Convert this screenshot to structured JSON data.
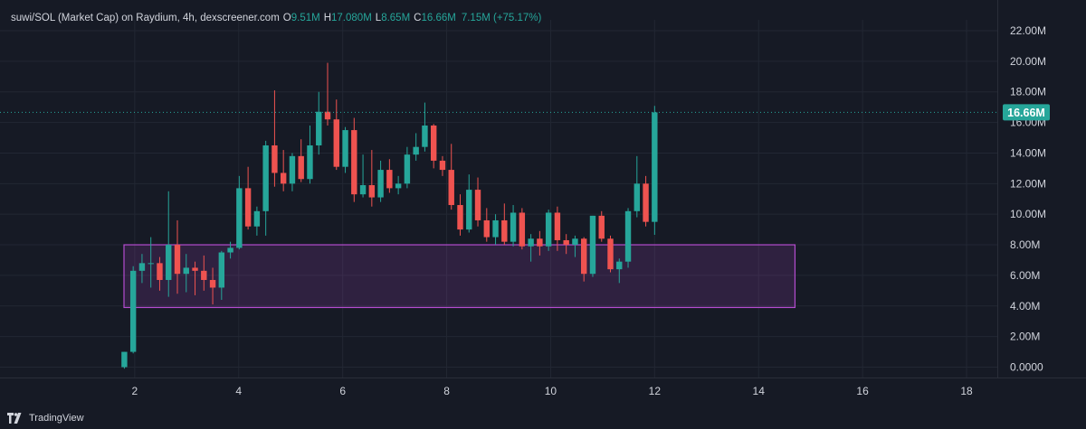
{
  "legend": {
    "symbol": "suwi/SOL (Market Cap) on Raydium, 4h, dexscreener.com",
    "open_label": "O",
    "open": "9.51M",
    "high_label": "H",
    "high": "17.080M",
    "low_label": "L",
    "low": "8.65M",
    "close_label": "C",
    "close": "16.66M",
    "change": "7.15M (+75.17%)"
  },
  "footer": {
    "brand": "TradingView",
    "logo_icon": "tradingview-logo-icon"
  },
  "colors": {
    "up": "#26a69a",
    "down": "#ef5350",
    "zone": "#b44ccf",
    "background": "#161a25"
  },
  "chart_data": {
    "type": "candlestick",
    "x_ticks": [
      "2",
      "4",
      "6",
      "8",
      "10",
      "12",
      "14",
      "16",
      "18"
    ],
    "y_ticks": [
      "0.0000",
      "2.00M",
      "4.00M",
      "6.00M",
      "8.00M",
      "10.00M",
      "12.00M",
      "14.00M",
      "16.00M",
      "18.00M",
      "20.00M",
      "22.00M"
    ],
    "y_unit": "M",
    "x_range": [
      0,
      19.3
    ],
    "y_range": [
      -0.8,
      23.4
    ],
    "last_price": 16.66,
    "last_price_label": "16.66M",
    "zone": {
      "x_start": 0,
      "x_end": 14.7,
      "y_low": 3.9,
      "y_high": 8.0
    },
    "candles": [
      {
        "x": 1.8,
        "o": 0.0,
        "h": 1.0,
        "l": -0.1,
        "c": 1.0
      },
      {
        "x": 1.97,
        "o": 1.0,
        "h": 6.6,
        "l": 0.9,
        "c": 6.3
      },
      {
        "x": 2.14,
        "o": 6.3,
        "h": 7.4,
        "l": 5.5,
        "c": 6.8
      },
      {
        "x": 2.31,
        "o": 6.8,
        "h": 8.5,
        "l": 5.2,
        "c": 6.8
      },
      {
        "x": 2.48,
        "o": 6.8,
        "h": 7.2,
        "l": 5.0,
        "c": 5.7
      },
      {
        "x": 2.65,
        "o": 5.7,
        "h": 11.5,
        "l": 4.6,
        "c": 8.0
      },
      {
        "x": 2.82,
        "o": 8.0,
        "h": 9.6,
        "l": 4.8,
        "c": 6.1
      },
      {
        "x": 2.99,
        "o": 6.1,
        "h": 7.4,
        "l": 4.9,
        "c": 6.5
      },
      {
        "x": 3.16,
        "o": 6.5,
        "h": 6.9,
        "l": 4.7,
        "c": 6.3
      },
      {
        "x": 3.33,
        "o": 6.3,
        "h": 7.3,
        "l": 5.0,
        "c": 5.7
      },
      {
        "x": 3.5,
        "o": 5.7,
        "h": 6.5,
        "l": 4.1,
        "c": 5.2
      },
      {
        "x": 3.67,
        "o": 5.2,
        "h": 7.6,
        "l": 4.4,
        "c": 7.5
      },
      {
        "x": 3.84,
        "o": 7.5,
        "h": 8.2,
        "l": 7.1,
        "c": 7.8
      },
      {
        "x": 4.01,
        "o": 7.8,
        "h": 12.5,
        "l": 7.7,
        "c": 11.7
      },
      {
        "x": 4.18,
        "o": 11.7,
        "h": 13.1,
        "l": 9.0,
        "c": 9.2
      },
      {
        "x": 4.35,
        "o": 9.2,
        "h": 10.5,
        "l": 8.6,
        "c": 10.2
      },
      {
        "x": 4.52,
        "o": 10.2,
        "h": 14.8,
        "l": 8.6,
        "c": 14.5
      },
      {
        "x": 4.69,
        "o": 14.5,
        "h": 18.1,
        "l": 11.8,
        "c": 12.7
      },
      {
        "x": 4.86,
        "o": 12.7,
        "h": 14.2,
        "l": 11.5,
        "c": 12.0
      },
      {
        "x": 5.03,
        "o": 12.0,
        "h": 14.0,
        "l": 11.5,
        "c": 13.8
      },
      {
        "x": 5.2,
        "o": 13.8,
        "h": 14.9,
        "l": 12.1,
        "c": 12.3
      },
      {
        "x": 5.37,
        "o": 12.3,
        "h": 15.8,
        "l": 12.0,
        "c": 14.5
      },
      {
        "x": 5.54,
        "o": 14.5,
        "h": 18.0,
        "l": 13.9,
        "c": 16.7
      },
      {
        "x": 5.71,
        "o": 16.7,
        "h": 19.9,
        "l": 15.8,
        "c": 16.2
      },
      {
        "x": 5.88,
        "o": 16.2,
        "h": 17.5,
        "l": 12.9,
        "c": 13.1
      },
      {
        "x": 6.05,
        "o": 13.1,
        "h": 15.7,
        "l": 12.7,
        "c": 15.5
      },
      {
        "x": 6.22,
        "o": 15.5,
        "h": 16.3,
        "l": 10.8,
        "c": 11.3
      },
      {
        "x": 6.39,
        "o": 11.3,
        "h": 13.9,
        "l": 11.1,
        "c": 11.9
      },
      {
        "x": 6.56,
        "o": 11.9,
        "h": 14.2,
        "l": 10.5,
        "c": 11.1
      },
      {
        "x": 6.73,
        "o": 11.1,
        "h": 13.5,
        "l": 10.8,
        "c": 12.9
      },
      {
        "x": 6.9,
        "o": 12.9,
        "h": 13.6,
        "l": 11.4,
        "c": 11.7
      },
      {
        "x": 7.07,
        "o": 11.7,
        "h": 12.5,
        "l": 11.3,
        "c": 12.0
      },
      {
        "x": 7.24,
        "o": 12.0,
        "h": 14.4,
        "l": 11.7,
        "c": 13.9
      },
      {
        "x": 7.41,
        "o": 13.9,
        "h": 15.3,
        "l": 13.5,
        "c": 14.4
      },
      {
        "x": 7.58,
        "o": 14.4,
        "h": 17.3,
        "l": 14.1,
        "c": 15.8
      },
      {
        "x": 7.75,
        "o": 15.8,
        "h": 15.9,
        "l": 13.0,
        "c": 13.5
      },
      {
        "x": 7.92,
        "o": 13.5,
        "h": 13.8,
        "l": 12.5,
        "c": 12.9
      },
      {
        "x": 8.09,
        "o": 12.9,
        "h": 14.6,
        "l": 10.3,
        "c": 10.6
      },
      {
        "x": 8.26,
        "o": 10.6,
        "h": 11.3,
        "l": 8.6,
        "c": 9.0
      },
      {
        "x": 8.43,
        "o": 9.0,
        "h": 12.6,
        "l": 8.8,
        "c": 11.6
      },
      {
        "x": 8.6,
        "o": 11.6,
        "h": 12.4,
        "l": 9.2,
        "c": 9.6
      },
      {
        "x": 8.77,
        "o": 9.6,
        "h": 10.4,
        "l": 8.2,
        "c": 8.5
      },
      {
        "x": 8.94,
        "o": 8.5,
        "h": 10.0,
        "l": 8.0,
        "c": 9.6
      },
      {
        "x": 9.11,
        "o": 9.6,
        "h": 10.7,
        "l": 8.0,
        "c": 8.2
      },
      {
        "x": 9.28,
        "o": 8.2,
        "h": 10.6,
        "l": 7.9,
        "c": 10.1
      },
      {
        "x": 9.45,
        "o": 10.1,
        "h": 10.4,
        "l": 7.7,
        "c": 7.9
      },
      {
        "x": 9.62,
        "o": 7.9,
        "h": 8.7,
        "l": 6.9,
        "c": 8.4
      },
      {
        "x": 9.79,
        "o": 8.4,
        "h": 8.9,
        "l": 7.3,
        "c": 7.9
      },
      {
        "x": 9.96,
        "o": 7.9,
        "h": 10.3,
        "l": 7.6,
        "c": 10.1
      },
      {
        "x": 10.13,
        "o": 10.1,
        "h": 10.5,
        "l": 7.6,
        "c": 8.3
      },
      {
        "x": 10.3,
        "o": 8.3,
        "h": 8.7,
        "l": 7.4,
        "c": 8.0
      },
      {
        "x": 10.47,
        "o": 8.0,
        "h": 8.6,
        "l": 7.2,
        "c": 8.4
      },
      {
        "x": 10.64,
        "o": 8.4,
        "h": 8.5,
        "l": 5.6,
        "c": 6.1
      },
      {
        "x": 10.81,
        "o": 6.1,
        "h": 9.9,
        "l": 5.9,
        "c": 9.9
      },
      {
        "x": 10.98,
        "o": 9.9,
        "h": 10.2,
        "l": 8.2,
        "c": 8.4
      },
      {
        "x": 11.15,
        "o": 8.4,
        "h": 8.6,
        "l": 6.2,
        "c": 6.4
      },
      {
        "x": 11.32,
        "o": 6.4,
        "h": 7.1,
        "l": 5.5,
        "c": 6.9
      },
      {
        "x": 11.49,
        "o": 6.9,
        "h": 10.4,
        "l": 6.5,
        "c": 10.2
      },
      {
        "x": 11.66,
        "o": 10.2,
        "h": 13.8,
        "l": 9.8,
        "c": 12.0
      },
      {
        "x": 11.83,
        "o": 12.0,
        "h": 12.5,
        "l": 9.2,
        "c": 9.5
      },
      {
        "x": 12.0,
        "o": 9.5,
        "h": 17.08,
        "l": 8.65,
        "c": 16.66
      }
    ]
  }
}
